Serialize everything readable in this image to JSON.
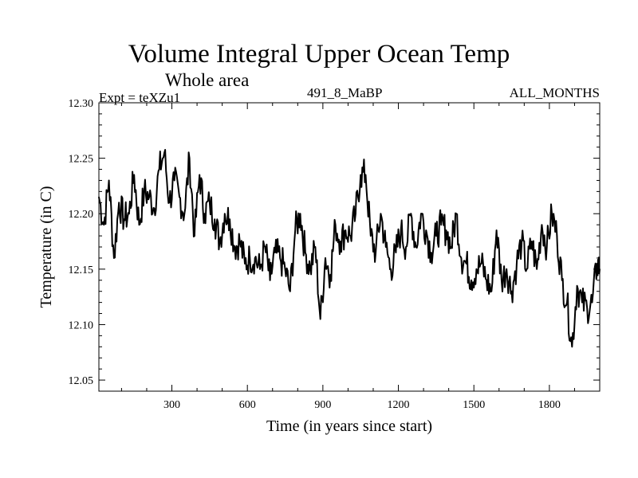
{
  "labels": {
    "expt": "Expt = teXZu1",
    "experiment_id": "491_8_MaBP",
    "months": "ALL_MONTHS"
  },
  "chart_data": {
    "type": "line",
    "title": "Volume Integral Upper Ocean Temp",
    "subtitle": "Whole area",
    "xlabel": "Time (in years since start)",
    "ylabel": "Temperature (in C)",
    "xlim": [
      10,
      2000
    ],
    "ylim": [
      12.04,
      12.3
    ],
    "x_ticks": [
      300,
      600,
      900,
      1200,
      1500,
      1800
    ],
    "y_ticks": [
      12.05,
      12.1,
      12.15,
      12.2,
      12.25,
      12.3
    ],
    "y_tick_labels": [
      "12.05",
      "12.10",
      "12.15",
      "12.20",
      "12.25",
      "12.30"
    ],
    "series": [
      {
        "name": "Volume Integral Upper Ocean Temp",
        "x": [
          10,
          30,
          50,
          70,
          90,
          110,
          130,
          150,
          170,
          190,
          210,
          230,
          250,
          270,
          290,
          310,
          330,
          350,
          370,
          390,
          410,
          430,
          450,
          470,
          490,
          510,
          530,
          550,
          570,
          590,
          610,
          630,
          650,
          670,
          690,
          710,
          730,
          750,
          770,
          790,
          810,
          830,
          850,
          870,
          890,
          910,
          930,
          950,
          970,
          990,
          1010,
          1030,
          1050,
          1070,
          1090,
          1110,
          1130,
          1150,
          1170,
          1190,
          1210,
          1230,
          1250,
          1270,
          1290,
          1310,
          1330,
          1350,
          1370,
          1390,
          1410,
          1430,
          1450,
          1470,
          1490,
          1510,
          1530,
          1550,
          1570,
          1590,
          1610,
          1630,
          1650,
          1670,
          1690,
          1710,
          1730,
          1750,
          1770,
          1790,
          1810,
          1830,
          1850,
          1870,
          1890,
          1910,
          1930,
          1950,
          1970,
          1990,
          2000
        ],
        "y": [
          12.215,
          12.19,
          12.23,
          12.16,
          12.21,
          12.195,
          12.2,
          12.235,
          12.19,
          12.22,
          12.215,
          12.205,
          12.24,
          12.255,
          12.21,
          12.23,
          12.215,
          12.2,
          12.25,
          12.18,
          12.235,
          12.2,
          12.21,
          12.195,
          12.175,
          12.2,
          12.195,
          12.17,
          12.175,
          12.155,
          12.16,
          12.16,
          12.15,
          12.17,
          12.14,
          12.165,
          12.16,
          12.15,
          12.13,
          12.185,
          12.2,
          12.165,
          12.15,
          12.17,
          12.105,
          12.16,
          12.145,
          12.19,
          12.175,
          12.185,
          12.18,
          12.2,
          12.235,
          12.235,
          12.18,
          12.165,
          12.2,
          12.17,
          12.15,
          12.165,
          12.185,
          12.17,
          12.2,
          12.17,
          12.2,
          12.185,
          12.165,
          12.18,
          12.19,
          12.185,
          12.17,
          12.2,
          12.16,
          12.155,
          12.14,
          12.15,
          12.155,
          12.14,
          12.13,
          12.185,
          12.14,
          12.15,
          12.13,
          12.155,
          12.175,
          12.15,
          12.175,
          12.15,
          12.19,
          12.17,
          12.2,
          12.18,
          12.14,
          12.12,
          12.08,
          12.135,
          12.12,
          12.115,
          12.12,
          12.155,
          12.15
        ]
      }
    ]
  }
}
